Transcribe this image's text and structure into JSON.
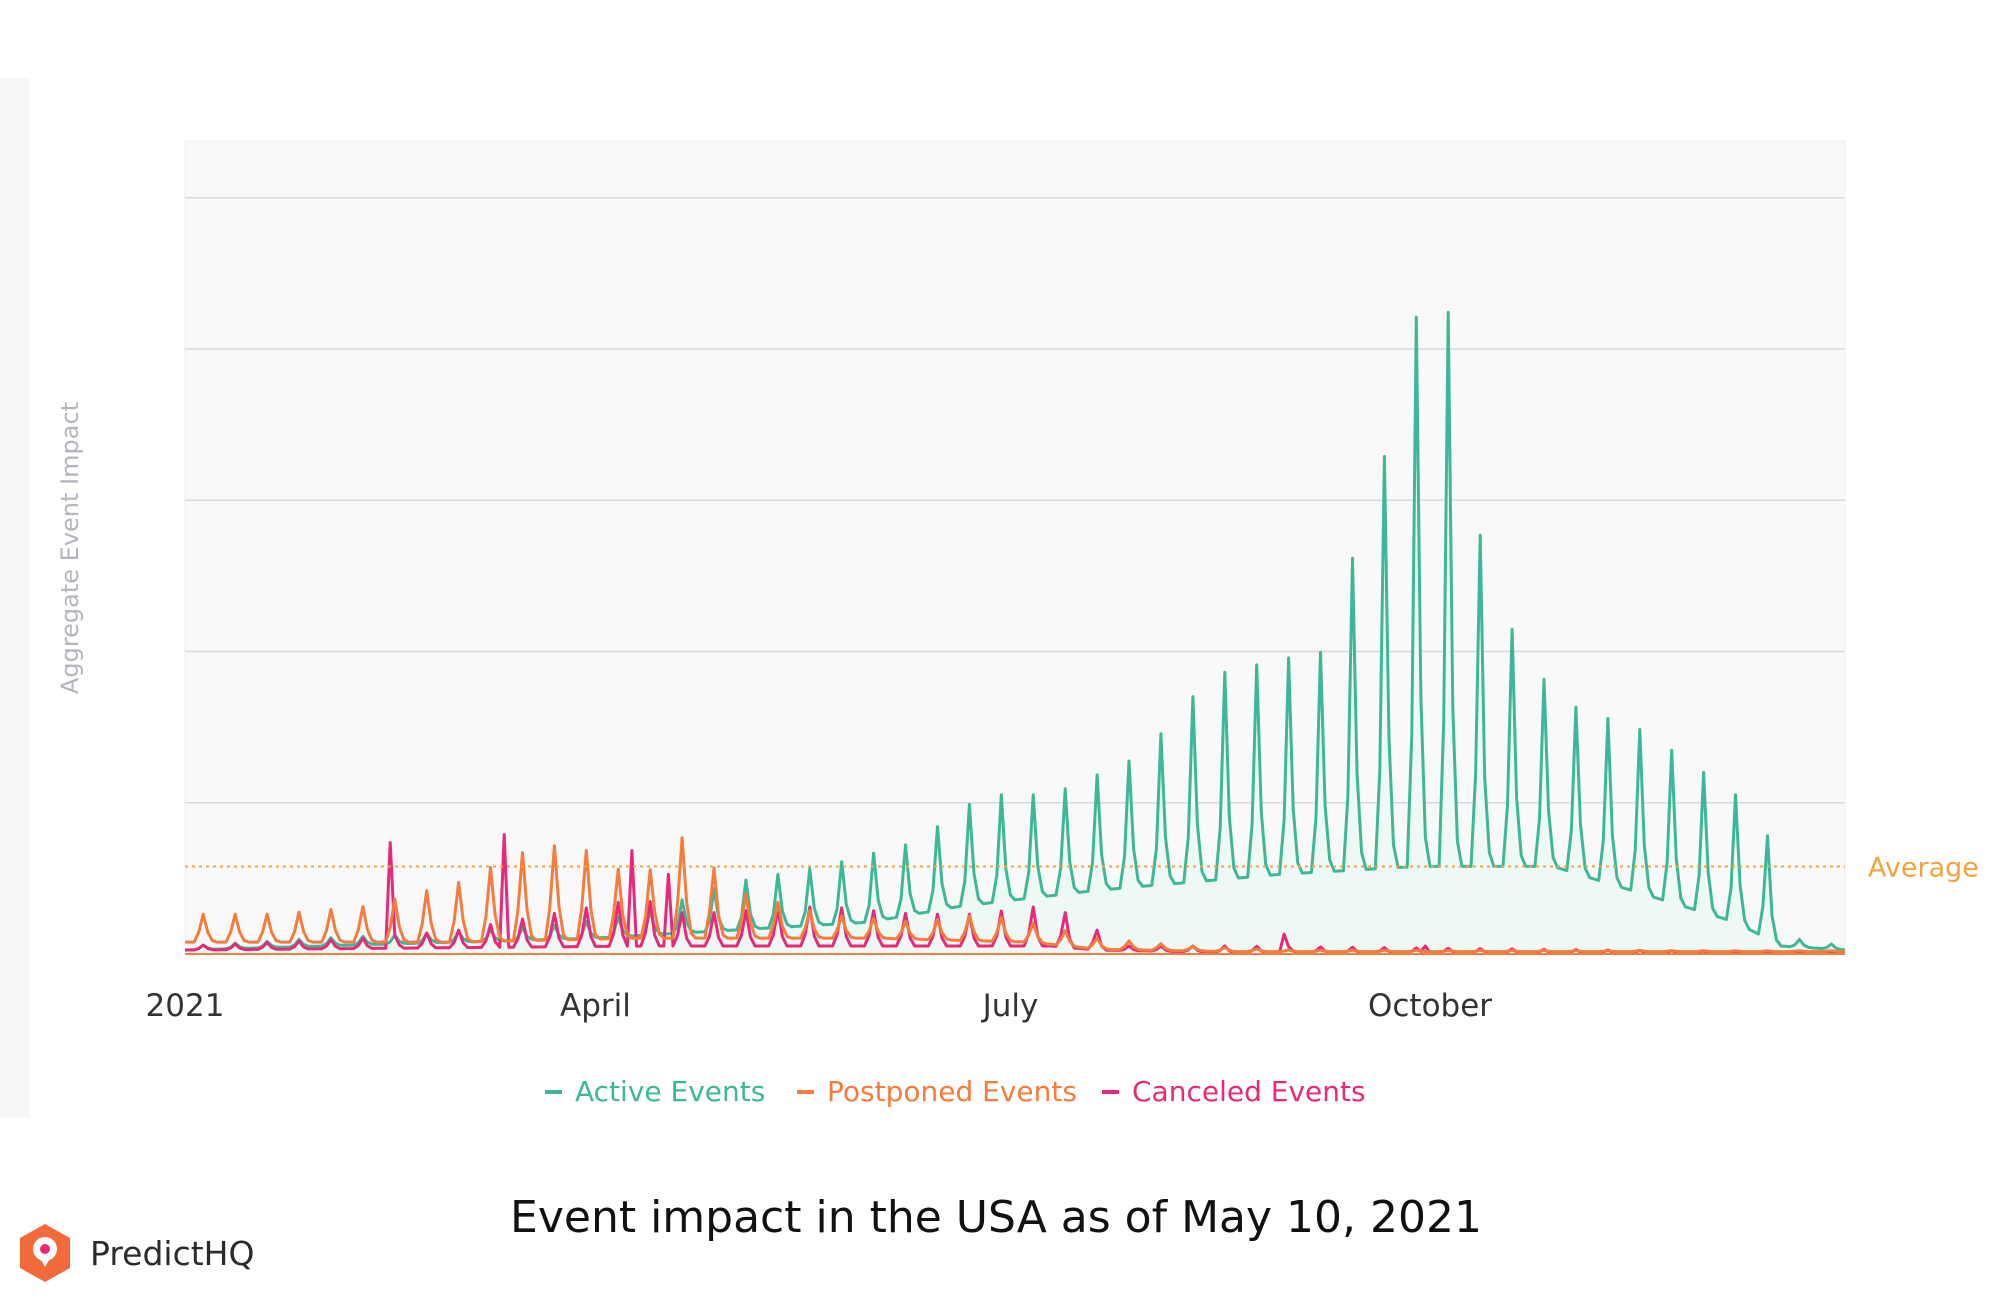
{
  "chart_data": {
    "type": "line",
    "title": "Event impact in the USA as of May 10, 2021",
    "ylabel": "Aggregate Event Impact",
    "xlabel": "",
    "x_domain": [
      0,
      364
    ],
    "ylim": [
      0,
      100
    ],
    "grid": true,
    "legend_position": "bottom-center",
    "x_ticks": [
      {
        "label": "2021",
        "day": 0
      },
      {
        "label": "April",
        "day": 90
      },
      {
        "label": "July",
        "day": 181
      },
      {
        "label": "October",
        "day": 273
      }
    ],
    "y_gridlines": [
      0,
      19,
      38,
      57,
      76,
      95
    ],
    "average": {
      "label": "Average",
      "value": 11,
      "color": "#f6a23c"
    },
    "weekly_pattern_offset": 5,
    "series": [
      {
        "name": "Active Events",
        "color": "#3cb898",
        "fill": "#eef8f4",
        "profile": "active",
        "weekly_base": [
          [
            0,
            0.5
          ],
          [
            30,
            1
          ],
          [
            60,
            1.5
          ],
          [
            90,
            2
          ],
          [
            120,
            3
          ],
          [
            150,
            4
          ],
          [
            170,
            6
          ],
          [
            200,
            8
          ],
          [
            240,
            10
          ],
          [
            270,
            11
          ],
          [
            300,
            11
          ],
          [
            340,
            4
          ],
          [
            350,
            1
          ],
          [
            364,
            0.5
          ]
        ],
        "weekly_peaks": [
          [
            0,
            1
          ],
          [
            30,
            2
          ],
          [
            50,
            2.5
          ],
          [
            80,
            3.5
          ],
          [
            100,
            5
          ],
          [
            120,
            9
          ],
          [
            140,
            11
          ],
          [
            160,
            14
          ],
          [
            175,
            20
          ],
          [
            190,
            20
          ],
          [
            210,
            25
          ],
          [
            225,
            35
          ],
          [
            240,
            37
          ],
          [
            250,
            38
          ],
          [
            255,
            48
          ],
          [
            262,
            60
          ],
          [
            270,
            80
          ],
          [
            275,
            87
          ],
          [
            280,
            71
          ],
          [
            285,
            48
          ],
          [
            295,
            36
          ],
          [
            305,
            31
          ],
          [
            320,
            28
          ],
          [
            330,
            24
          ],
          [
            340,
            20
          ],
          [
            345,
            20
          ],
          [
            352,
            2
          ],
          [
            364,
            1
          ]
        ]
      },
      {
        "name": "Postponed Events",
        "color": "#f47c3c",
        "profile": "postponed",
        "weekly_base": [
          [
            0,
            1.5
          ],
          [
            60,
            1.5
          ],
          [
            100,
            2
          ],
          [
            150,
            2
          ],
          [
            185,
            1.5
          ],
          [
            200,
            0.6
          ],
          [
            230,
            0.3
          ],
          [
            364,
            0.3
          ]
        ],
        "weekly_peaks": [
          [
            0,
            5
          ],
          [
            20,
            5
          ],
          [
            40,
            6
          ],
          [
            60,
            9
          ],
          [
            75,
            13
          ],
          [
            85,
            14
          ],
          [
            100,
            9
          ],
          [
            105,
            13
          ],
          [
            110,
            15
          ],
          [
            120,
            8
          ],
          [
            140,
            5
          ],
          [
            160,
            4
          ],
          [
            175,
            5
          ],
          [
            185,
            4
          ],
          [
            200,
            2
          ],
          [
            220,
            1
          ],
          [
            240,
            0.5
          ],
          [
            364,
            0.4
          ]
        ]
      },
      {
        "name": "Canceled Events",
        "color": "#e8287a",
        "profile": "canceled",
        "weekly_base": [
          [
            0,
            0.5
          ],
          [
            100,
            1
          ],
          [
            140,
            1
          ],
          [
            190,
            1
          ],
          [
            200,
            0.5
          ],
          [
            230,
            0.2
          ],
          [
            364,
            0.1
          ]
        ],
        "weekly_peaks": [
          [
            0,
            1
          ],
          [
            40,
            2
          ],
          [
            60,
            3
          ],
          [
            80,
            5
          ],
          [
            100,
            7
          ],
          [
            110,
            5
          ],
          [
            140,
            6
          ],
          [
            160,
            5
          ],
          [
            175,
            5
          ],
          [
            185,
            6
          ],
          [
            195,
            5
          ],
          [
            205,
            1
          ],
          [
            230,
            1
          ],
          [
            364,
            0.2
          ]
        ],
        "spikes": [
          [
            45,
            14
          ],
          [
            70,
            15
          ],
          [
            98,
            13
          ],
          [
            106,
            10
          ],
          [
            241,
            2.5
          ],
          [
            272,
            1
          ]
        ]
      }
    ]
  },
  "legend": [
    {
      "label": "Active Events",
      "color": "#3cb898"
    },
    {
      "label": "Postponed Events",
      "color": "#f47c3c"
    },
    {
      "label": "Canceled Events",
      "color": "#e8287a"
    }
  ],
  "caption": "Event impact in the USA as of May 10, 2021",
  "brand": {
    "name": "PredictHQ",
    "logo_color": "#f36a3a",
    "logo_inner_color": "#e8287a"
  }
}
